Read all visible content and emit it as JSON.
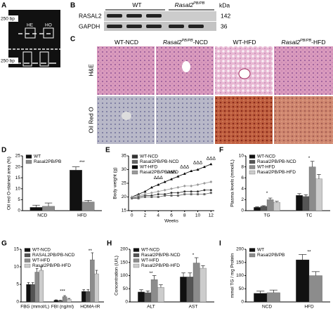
{
  "figure": {
    "a": {
      "label": "A",
      "marker_top": "250 bp",
      "marker_bottom": "250 bp",
      "lanes": [
        "HE",
        "HO"
      ]
    },
    "b": {
      "label": "B",
      "groups": [
        {
          "base": "WT"
        },
        {
          "base": "Rasal2",
          "sup": "PB/PB"
        }
      ],
      "unit": "kDa",
      "rows": [
        "RASAL2",
        "GAPDH"
      ],
      "sizes": [
        "142",
        "36"
      ]
    },
    "c": {
      "label": "C",
      "columns": [
        {
          "base": "WT-NCD"
        },
        {
          "base": "Rasal2",
          "sup": "PB/PB",
          "tail": "-NCD"
        },
        {
          "base": "WT-HFD"
        },
        {
          "base": "Rasal2",
          "sup": "PB/PB",
          "tail": "-HFD"
        }
      ],
      "rows": [
        "H&E",
        "Oil Red O"
      ]
    }
  },
  "chart_data": [
    {
      "label": "D",
      "type": "bar",
      "ylabel": "Oil red O-stained area (%)",
      "categories": [
        "NCD",
        "HFD"
      ],
      "ylim": [
        0,
        25
      ],
      "yticks": [
        0,
        5,
        10,
        15,
        20,
        25
      ],
      "series": [
        {
          "name": "WT",
          "color": "#111111",
          "values": [
            1.5,
            18.5
          ],
          "errors": [
            1,
            1.5
          ]
        },
        {
          "name": "Rasal2PB/PB",
          "color": "#8c8c8c",
          "values": [
            2,
            4
          ],
          "errors": [
            1.5,
            0.7
          ]
        }
      ],
      "annotations": [
        {
          "text": "***",
          "x": 1,
          "y": 22
        }
      ]
    },
    {
      "label": "E",
      "type": "line",
      "ylabel": "Body weight (g)",
      "xlabel": "Weeks",
      "x": [
        0,
        1,
        2,
        3,
        4,
        5,
        6,
        7,
        8,
        9,
        10,
        11,
        12
      ],
      "xlim": [
        -0.5,
        12.5
      ],
      "xticks": [
        0,
        2,
        4,
        6,
        8,
        10,
        12
      ],
      "ylim": [
        15,
        35
      ],
      "yticks": [
        15,
        20,
        25,
        30,
        35
      ],
      "series": [
        {
          "name": "WT-NCD",
          "color": "#333333",
          "marker": "circle",
          "values": [
            19.5,
            20,
            20.5,
            20.5,
            21,
            21,
            21.5,
            21.5,
            22,
            22,
            22,
            22.5,
            22.5
          ]
        },
        {
          "name": "Rasal2PB/PB-NCD",
          "color": "#666666",
          "marker": "square",
          "values": [
            19.5,
            19.5,
            20,
            20,
            20,
            20.5,
            20.5,
            20.5,
            21,
            21,
            21,
            21,
            21.5
          ]
        },
        {
          "name": "WT-HFD",
          "color": "#000000",
          "marker": "triangle",
          "values": [
            20,
            21,
            22,
            23.5,
            24.5,
            25.5,
            26.5,
            27.5,
            28.5,
            29.5,
            30,
            31,
            32
          ]
        },
        {
          "name": "Rasal2PB/PB-HFD",
          "color": "#999999",
          "marker": "diamond",
          "values": [
            20,
            20.5,
            21,
            21.5,
            22,
            22.5,
            23,
            23.5,
            24,
            24,
            24.5,
            25,
            25.5
          ]
        }
      ],
      "annotations": [
        {
          "text": "ΔΔΔ",
          "x": 4,
          "y": 27
        },
        {
          "text": "ΔΔΔ",
          "x": 6,
          "y": 29
        },
        {
          "text": "ΔΔΔ",
          "x": 8,
          "y": 31
        },
        {
          "text": "ΔΔΔ",
          "x": 10,
          "y": 32.5
        },
        {
          "text": "ΔΔΔ",
          "x": 12,
          "y": 34
        }
      ]
    },
    {
      "label": "F",
      "type": "bar",
      "ylabel": "Plasma levels (mmol/L)",
      "categories": [
        "TG",
        "TC"
      ],
      "ylim": [
        0,
        10
      ],
      "yticks": [
        0,
        2,
        4,
        6,
        8,
        10
      ],
      "series": [
        {
          "name": "WT-NCD",
          "color": "#111111",
          "values": [
            0.6,
            2.8
          ],
          "errors": [
            0.1,
            0.3
          ]
        },
        {
          "name": "Rasal2PB/PB-NCD",
          "color": "#555555",
          "values": [
            0.8,
            2.6
          ],
          "errors": [
            0.1,
            0.3
          ]
        },
        {
          "name": "WT-HFD",
          "color": "#8c8c8c",
          "values": [
            2,
            8
          ],
          "errors": [
            0.3,
            1
          ]
        },
        {
          "name": "Rasal2PB/PB-HFD",
          "color": "#cccccc",
          "values": [
            1.5,
            5.8
          ],
          "errors": [
            0.2,
            0.8
          ]
        }
      ],
      "annotations": [
        {
          "text": "*",
          "x": 0,
          "y": 3.2
        },
        {
          "text": "*",
          "x": 1,
          "y": 9.6
        }
      ]
    },
    {
      "label": "G",
      "type": "bar",
      "categories": [
        "FBG (mmol/L)",
        "FBI (ng/ml)",
        "HOMA-IR"
      ],
      "ylim": [
        0,
        15
      ],
      "yticks": [
        0,
        5,
        10,
        15
      ],
      "series": [
        {
          "name": "WT-NCD",
          "color": "#111111",
          "values": [
            5,
            0.5,
            3
          ],
          "errors": [
            0.5,
            0.1,
            0.5
          ]
        },
        {
          "name": "RASAL2PB/PB-NCD",
          "color": "#555555",
          "values": [
            5,
            0.4,
            3
          ],
          "errors": [
            0.5,
            0.1,
            0.5
          ]
        },
        {
          "name": "WT-HFD",
          "color": "#8c8c8c",
          "values": [
            8.5,
            1.5,
            12
          ],
          "errors": [
            1,
            0.3,
            2
          ]
        },
        {
          "name": "Rasal2PB/PB-HFD",
          "color": "#cccccc",
          "values": [
            9,
            0.8,
            8
          ],
          "errors": [
            1,
            0.2,
            1
          ]
        }
      ],
      "annotations": [
        {
          "text": "***",
          "x": 1,
          "y": 3
        },
        {
          "text": "**",
          "x": 2,
          "y": 14.5
        }
      ]
    },
    {
      "label": "H",
      "type": "bar",
      "ylabel": "Concentration (U/L)",
      "categories": [
        "ALT",
        "AST"
      ],
      "ylim": [
        0,
        200
      ],
      "yticks": [
        0,
        50,
        100,
        150,
        200
      ],
      "series": [
        {
          "name": "WT-NCD",
          "color": "#111111",
          "values": [
            38,
            95
          ],
          "errors": [
            8,
            15
          ]
        },
        {
          "name": "Rasal2PB/PB-NCD",
          "color": "#555555",
          "values": [
            35,
            95
          ],
          "errors": [
            7,
            15
          ]
        },
        {
          "name": "WT-HFD",
          "color": "#8c8c8c",
          "values": [
            85,
            148
          ],
          "errors": [
            15,
            20
          ]
        },
        {
          "name": "Rasal2PB/PB-HFD",
          "color": "#cccccc",
          "values": [
            55,
            128
          ],
          "errors": [
            10,
            10
          ]
        }
      ],
      "annotations": [
        {
          "text": "**",
          "x": 0,
          "y": 108
        },
        {
          "text": "*",
          "x": 1,
          "y": 178
        }
      ]
    },
    {
      "label": "I",
      "type": "bar",
      "ylabel": "mmol TG / mg Protein",
      "categories": [
        "NCD",
        "HFD"
      ],
      "ylim": [
        0,
        200
      ],
      "yticks": [
        0,
        50,
        100,
        150,
        200
      ],
      "series": [
        {
          "name": "WT",
          "color": "#111111",
          "values": [
            33,
            160
          ],
          "errors": [
            8,
            20
          ]
        },
        {
          "name": "Rasal2PB/PB",
          "color": "#8c8c8c",
          "values": [
            35,
            100
          ],
          "errors": [
            10,
            15
          ]
        }
      ],
      "annotations": [
        {
          "text": "**",
          "x": 1,
          "y": 190
        }
      ]
    }
  ]
}
